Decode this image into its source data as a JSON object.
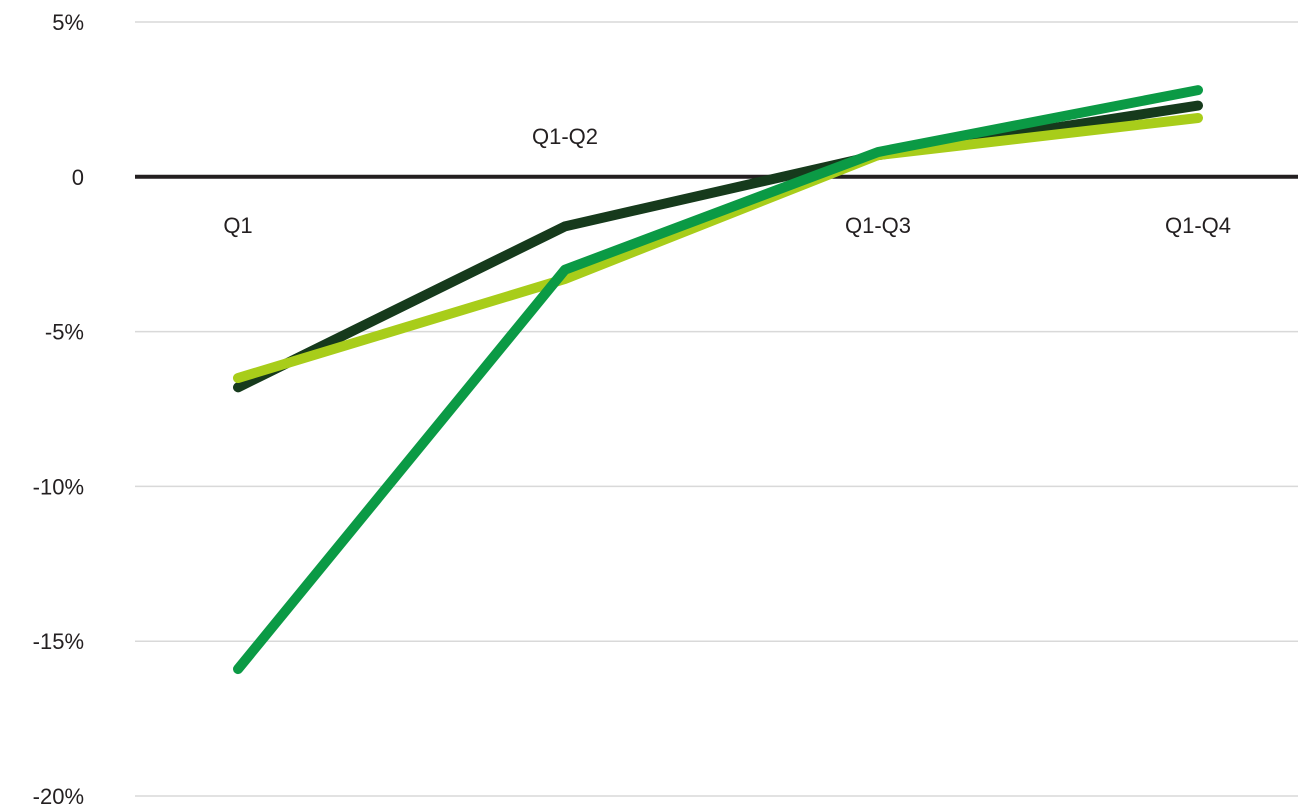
{
  "chart_data": {
    "type": "line",
    "title": "",
    "xlabel": "",
    "ylabel": "",
    "categories": [
      "Q1",
      "Q1-Q2",
      "Q1-Q3",
      "Q1-Q4"
    ],
    "ylim": [
      -20,
      5
    ],
    "yticks": [
      5,
      0,
      -5,
      -10,
      -15,
      -20
    ],
    "ytick_labels": [
      "5%",
      "0",
      "-5%",
      "-10%",
      "-15%",
      "-20%"
    ],
    "grid": true,
    "legend": "none",
    "series": [
      {
        "color": "#163a1c",
        "values": [
          -6.8,
          -1.6,
          0.7,
          2.3
        ]
      },
      {
        "color": "#a8cd1a",
        "values": [
          -6.5,
          -3.3,
          0.7,
          1.9
        ]
      },
      {
        "color": "#0b9a45",
        "values": [
          -15.9,
          -3.0,
          0.8,
          2.8
        ]
      }
    ],
    "colors": {
      "zero_line": "#231f20",
      "grid": "#d9d9d9",
      "text": "#231f20"
    }
  }
}
